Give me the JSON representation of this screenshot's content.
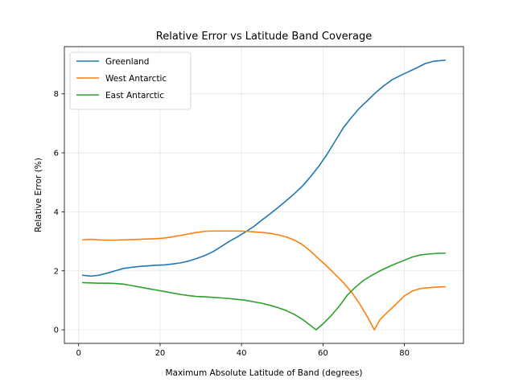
{
  "chart_data": {
    "type": "line",
    "title": "Relative Error vs Latitude Band Coverage",
    "xlabel": "Maximum Absolute Latitude of Band (degrees)",
    "ylabel": "Relative Error (%)",
    "xlim": [
      -3.5,
      94.5
    ],
    "ylim": [
      -0.46,
      9.6
    ],
    "xticks": [
      0,
      20,
      40,
      60,
      80
    ],
    "yticks": [
      0,
      2,
      4,
      6,
      8
    ],
    "grid": true,
    "legend_position": "top-left",
    "series": [
      {
        "name": "Greenland",
        "color": "#1f77b4",
        "points": [
          [
            1,
            1.85
          ],
          [
            3,
            1.82
          ],
          [
            5,
            1.85
          ],
          [
            7,
            1.92
          ],
          [
            9,
            2.0
          ],
          [
            11,
            2.08
          ],
          [
            13,
            2.12
          ],
          [
            15,
            2.15
          ],
          [
            17,
            2.17
          ],
          [
            19,
            2.19
          ],
          [
            21,
            2.2
          ],
          [
            23,
            2.23
          ],
          [
            25,
            2.27
          ],
          [
            27,
            2.33
          ],
          [
            29,
            2.42
          ],
          [
            31,
            2.52
          ],
          [
            33,
            2.65
          ],
          [
            35,
            2.82
          ],
          [
            37,
            3.0
          ],
          [
            39,
            3.15
          ],
          [
            41,
            3.32
          ],
          [
            43,
            3.5
          ],
          [
            45,
            3.72
          ],
          [
            47,
            3.93
          ],
          [
            49,
            4.15
          ],
          [
            51,
            4.38
          ],
          [
            53,
            4.62
          ],
          [
            55,
            4.88
          ],
          [
            57,
            5.2
          ],
          [
            59,
            5.55
          ],
          [
            61,
            5.95
          ],
          [
            63,
            6.4
          ],
          [
            65,
            6.85
          ],
          [
            67,
            7.2
          ],
          [
            69,
            7.52
          ],
          [
            71,
            7.78
          ],
          [
            73,
            8.05
          ],
          [
            75,
            8.28
          ],
          [
            77,
            8.48
          ],
          [
            79,
            8.62
          ],
          [
            81,
            8.75
          ],
          [
            83,
            8.88
          ],
          [
            85,
            9.02
          ],
          [
            87,
            9.1
          ],
          [
            89,
            9.13
          ],
          [
            90,
            9.14
          ]
        ]
      },
      {
        "name": "West Antarctic",
        "color": "#ff7f0e",
        "points": [
          [
            1,
            3.05
          ],
          [
            3,
            3.07
          ],
          [
            5,
            3.05
          ],
          [
            7,
            3.04
          ],
          [
            9,
            3.04
          ],
          [
            11,
            3.05
          ],
          [
            13,
            3.06
          ],
          [
            15,
            3.07
          ],
          [
            17,
            3.08
          ],
          [
            19,
            3.09
          ],
          [
            21,
            3.11
          ],
          [
            23,
            3.15
          ],
          [
            25,
            3.2
          ],
          [
            27,
            3.25
          ],
          [
            29,
            3.3
          ],
          [
            31,
            3.34
          ],
          [
            33,
            3.35
          ],
          [
            35,
            3.35
          ],
          [
            37,
            3.35
          ],
          [
            39,
            3.35
          ],
          [
            41,
            3.34
          ],
          [
            43,
            3.32
          ],
          [
            45,
            3.3
          ],
          [
            47,
            3.27
          ],
          [
            49,
            3.22
          ],
          [
            51,
            3.15
          ],
          [
            53,
            3.04
          ],
          [
            55,
            2.88
          ],
          [
            57,
            2.66
          ],
          [
            59,
            2.4
          ],
          [
            61,
            2.15
          ],
          [
            63,
            1.88
          ],
          [
            65,
            1.6
          ],
          [
            67,
            1.28
          ],
          [
            69,
            0.88
          ],
          [
            71,
            0.42
          ],
          [
            72.6,
            0.0
          ],
          [
            74,
            0.35
          ],
          [
            76,
            0.62
          ],
          [
            78,
            0.88
          ],
          [
            80,
            1.15
          ],
          [
            82,
            1.32
          ],
          [
            84,
            1.4
          ],
          [
            86,
            1.43
          ],
          [
            88,
            1.45
          ],
          [
            90,
            1.46
          ]
        ]
      },
      {
        "name": "East Antarctic",
        "color": "#2ca02c",
        "points": [
          [
            1,
            1.6
          ],
          [
            3,
            1.59
          ],
          [
            5,
            1.58
          ],
          [
            7,
            1.58
          ],
          [
            9,
            1.57
          ],
          [
            11,
            1.55
          ],
          [
            13,
            1.5
          ],
          [
            15,
            1.45
          ],
          [
            17,
            1.4
          ],
          [
            19,
            1.35
          ],
          [
            21,
            1.3
          ],
          [
            23,
            1.25
          ],
          [
            25,
            1.2
          ],
          [
            27,
            1.16
          ],
          [
            29,
            1.13
          ],
          [
            31,
            1.12
          ],
          [
            33,
            1.1
          ],
          [
            35,
            1.08
          ],
          [
            37,
            1.06
          ],
          [
            39,
            1.03
          ],
          [
            41,
            1.0
          ],
          [
            43,
            0.95
          ],
          [
            45,
            0.9
          ],
          [
            47,
            0.83
          ],
          [
            49,
            0.75
          ],
          [
            51,
            0.65
          ],
          [
            53,
            0.52
          ],
          [
            55,
            0.35
          ],
          [
            57,
            0.14
          ],
          [
            58.3,
            0.0
          ],
          [
            60,
            0.2
          ],
          [
            62,
            0.48
          ],
          [
            64,
            0.8
          ],
          [
            66,
            1.18
          ],
          [
            68,
            1.45
          ],
          [
            70,
            1.68
          ],
          [
            72,
            1.85
          ],
          [
            74,
            2.0
          ],
          [
            76,
            2.13
          ],
          [
            78,
            2.25
          ],
          [
            80,
            2.36
          ],
          [
            82,
            2.47
          ],
          [
            84,
            2.54
          ],
          [
            86,
            2.57
          ],
          [
            88,
            2.59
          ],
          [
            90,
            2.6
          ]
        ]
      }
    ]
  }
}
